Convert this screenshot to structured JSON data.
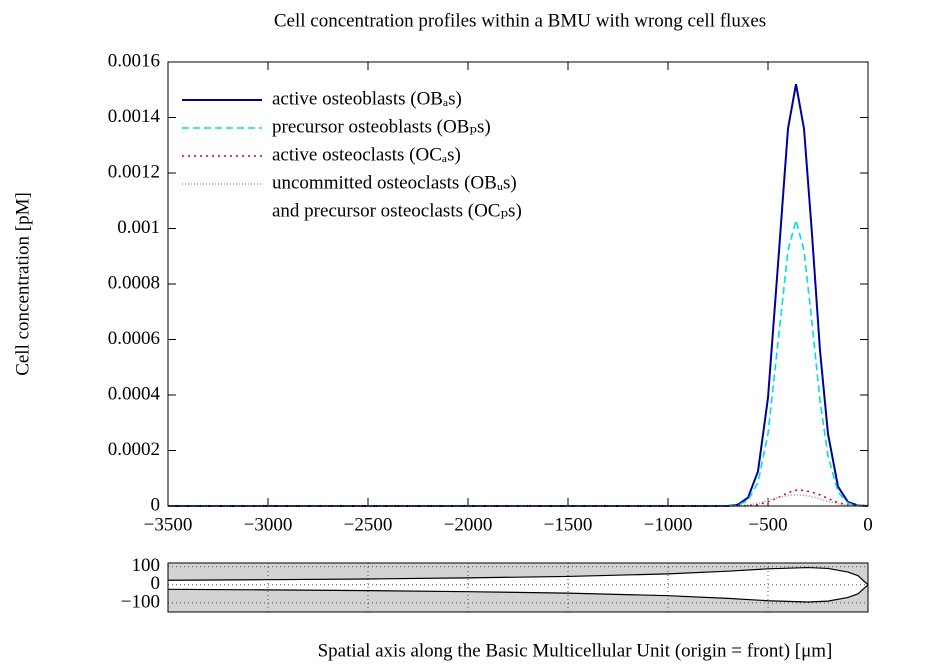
{
  "chart_data": [
    {
      "type": "line",
      "title": "Cell concentration profiles within a BMU with wrong cell fluxes",
      "y_label": "Cell concentration [pM]",
      "x": [
        -3500,
        -700,
        -650,
        -600,
        -550,
        -500,
        -450,
        -400,
        -360,
        -320,
        -280,
        -240,
        -200,
        -150,
        -100,
        -50,
        0
      ],
      "series": [
        {
          "name": [
            "active osteoblasts (OBₐs)"
          ],
          "color": "#0000a0",
          "style": "solid",
          "values": [
            0,
            0,
            5e-06,
            3e-05,
            0.000125,
            0.00039,
            0.00087,
            0.00136,
            0.00152,
            0.00136,
            0.00098,
            0.00056,
            0.00026,
            7e-05,
            1.4e-05,
            2e-06,
            0
          ]
        },
        {
          "name": [
            "precursor osteoblasts (OBₚs)"
          ],
          "color": "#00e0e0",
          "style": "dashed",
          "values": [
            0,
            0,
            3e-06,
            2e-05,
            8.5e-05,
            0.00026,
            0.00059,
            0.00092,
            0.00103,
            0.00092,
            0.00066,
            0.00038,
            0.00018,
            5e-05,
            1e-05,
            1e-06,
            0
          ]
        },
        {
          "name": [
            "active osteoclasts (OCₐs)"
          ],
          "color": "#e00000",
          "style": "dotted",
          "values": [
            0,
            0,
            0,
            1e-06,
            5e-06,
            1.5e-05,
            3e-05,
            4.8e-05,
            5.7e-05,
            5.6e-05,
            5e-05,
            4e-05,
            2.7e-05,
            1.2e-05,
            4e-06,
            1e-06,
            0
          ]
        },
        {
          "name": [
            "uncommitted osteoclasts (OBᵤs)",
            "and precursor osteoclasts (OCₚs)"
          ],
          "color": "#999999",
          "style": "fine",
          "values": [
            0,
            0,
            1e-06,
            4e-06,
            1e-05,
            2e-05,
            3e-05,
            3.8e-05,
            4e-05,
            3.9e-05,
            3.4e-05,
            2.6e-05,
            1.7e-05,
            8e-06,
            3e-06,
            1e-06,
            0
          ]
        }
      ],
      "xlim": [
        -3500,
        0
      ],
      "xticks": [
        {
          "value": -3500,
          "label": "−3500"
        },
        {
          "value": -3000,
          "label": "−3000"
        },
        {
          "value": -2500,
          "label": "−2500"
        },
        {
          "value": -2000,
          "label": "−2000"
        },
        {
          "value": -1500,
          "label": "−1500"
        },
        {
          "value": -1000,
          "label": "−1000"
        },
        {
          "value": -500,
          "label": "−500"
        },
        0
      ],
      "ylim": [
        0,
        0.0016
      ],
      "yticks": [
        0,
        0.0002,
        0.0004,
        0.0006,
        0.0008,
        0.001,
        0.0012,
        0.0014,
        0.0016
      ],
      "grid": false,
      "legend": "upper left"
    },
    {
      "type": "area",
      "x_label": "Spatial axis along the Basic Multicellular Unit (origin = front) [μm]",
      "x": [
        -3500,
        -3000,
        -2500,
        -2000,
        -1500,
        -1000,
        -700,
        -500,
        -300,
        -200,
        -100,
        -50,
        0
      ],
      "series": [
        {
          "color": "#000000",
          "values": [
            25,
            28,
            32,
            38,
            46,
            60,
            75,
            88,
            95,
            90,
            70,
            50,
            0
          ]
        },
        {
          "color": "#000000",
          "values": [
            -25,
            -28,
            -32,
            -38,
            -46,
            -60,
            -75,
            -88,
            -95,
            -90,
            -70,
            -50,
            0
          ]
        }
      ],
      "xlim": [
        -3500,
        0
      ],
      "xticks": [
        -3500,
        -3000,
        -2500,
        -2000,
        -1500,
        -1000,
        -500,
        0
      ],
      "ylim": [
        -150,
        120
      ],
      "yticks": [
        100,
        0,
        {
          "value": -100,
          "label": "−100"
        }
      ],
      "grid": true,
      "background": "#d3d3d3"
    }
  ]
}
